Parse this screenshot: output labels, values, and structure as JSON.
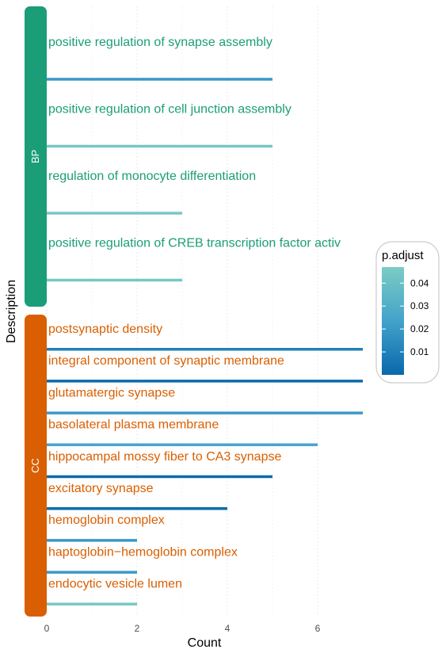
{
  "chart_data": {
    "type": "bar",
    "xlabel": "Count",
    "ylabel": "Description",
    "xlim": [
      0,
      7
    ],
    "x_ticks": [
      0,
      2,
      4,
      6
    ],
    "grid": "vertical dotted",
    "facets": [
      {
        "name": "BP",
        "color": "#1b9e77",
        "terms": [
          {
            "label": "positive regulation of synapse assembly",
            "count": 5,
            "p_adjust": 0.02
          },
          {
            "label": "positive regulation of cell junction assembly",
            "count": 5,
            "p_adjust": 0.045
          },
          {
            "label": "regulation of monocyte differentiation",
            "count": 3,
            "p_adjust": 0.045
          },
          {
            "label": "positive regulation of CREB transcription factor activ",
            "count": 3,
            "p_adjust": 0.045
          }
        ]
      },
      {
        "name": "CC",
        "color": "#d95f02",
        "terms": [
          {
            "label": "postsynaptic density",
            "count": 7,
            "p_adjust": 0.01
          },
          {
            "label": "integral component of synaptic membrane",
            "count": 7,
            "p_adjust": 0.001
          },
          {
            "label": "glutamatergic synapse",
            "count": 7,
            "p_adjust": 0.02
          },
          {
            "label": "basolateral plasma membrane",
            "count": 6,
            "p_adjust": 0.025
          },
          {
            "label": "hippocampal mossy fiber to CA3 synapse",
            "count": 5,
            "p_adjust": 0.001
          },
          {
            "label": "excitatory synapse",
            "count": 4,
            "p_adjust": 0.002
          },
          {
            "label": "hemoglobin complex",
            "count": 2,
            "p_adjust": 0.02
          },
          {
            "label": "haptoglobin−hemoglobin complex",
            "count": 2,
            "p_adjust": 0.02
          },
          {
            "label": "endocytic vesicle lumen",
            "count": 2,
            "p_adjust": 0.045
          }
        ]
      }
    ],
    "legend": {
      "title": "p.adjust",
      "position": "right",
      "range": [
        0,
        0.047
      ],
      "ticks": [
        0.01,
        0.02,
        0.03,
        0.04
      ],
      "tick_labels": [
        "0.01",
        "0.02",
        "0.03",
        "0.04"
      ],
      "color_low": "#0868ac",
      "color_mid": "#43a2ca",
      "color_high": "#7bccc4"
    }
  }
}
